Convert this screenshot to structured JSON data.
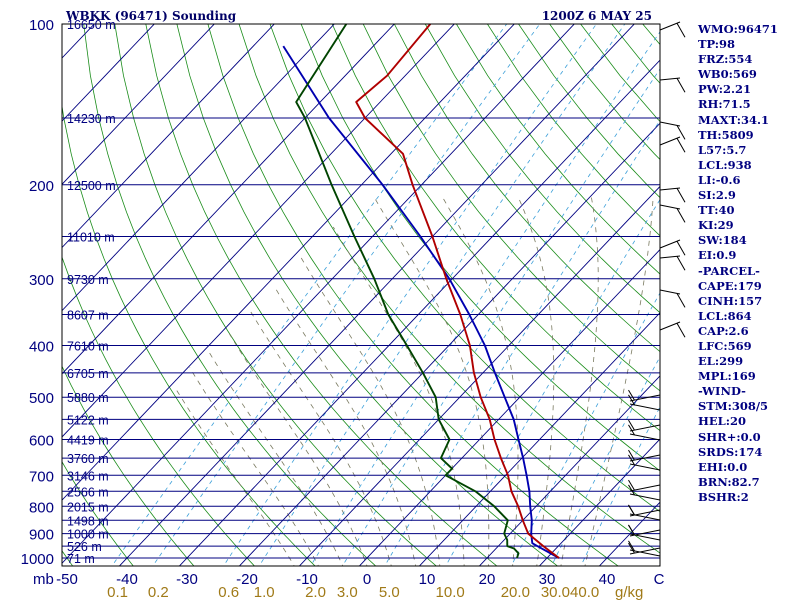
{
  "header": {
    "station": "WBKK (96471) Sounding",
    "time": "1200Z  6 MAY 25"
  },
  "chart_data": {
    "type": "line",
    "subtype": "skew-t log-p sounding",
    "pressure_levels": [
      100,
      200,
      300,
      400,
      500,
      600,
      700,
      800,
      900,
      1000
    ],
    "pressure_unit_label": "mb",
    "height_labels": [
      {
        "p": 100,
        "text": "16650 m"
      },
      {
        "p": 150,
        "text": "14230 m"
      },
      {
        "p": 200,
        "text": "12500 m"
      },
      {
        "p": 250,
        "text": "11010 m"
      },
      {
        "p": 300,
        "text": "9730 m"
      },
      {
        "p": 350,
        "text": "8607 m"
      },
      {
        "p": 400,
        "text": "7610 m"
      },
      {
        "p": 450,
        "text": "6705 m"
      },
      {
        "p": 500,
        "text": "5880 m"
      },
      {
        "p": 550,
        "text": "5122 m"
      },
      {
        "p": 600,
        "text": "4419 m"
      },
      {
        "p": 650,
        "text": "3760 m"
      },
      {
        "p": 700,
        "text": "3146 m"
      },
      {
        "p": 750,
        "text": "2566 m"
      },
      {
        "p": 800,
        "text": "2015 m"
      },
      {
        "p": 850,
        "text": "1498 m"
      },
      {
        "p": 900,
        "text": "1000 m"
      },
      {
        "p": 950,
        "text": "526 m"
      },
      {
        "p": 1000,
        "text": "71 m"
      }
    ],
    "temp_ticks": [
      "-50",
      "-40",
      "-30",
      "-20",
      "-10",
      "0",
      "10",
      "20",
      "30",
      "40"
    ],
    "mixing_ratio_label": "g/kg",
    "mixing_ratio_ticks": [
      "0.1",
      "0.2",
      "0.6",
      "1.0",
      "2.0",
      "3.0",
      "5.0",
      "10.0",
      "20.0",
      "30.0",
      "40.0"
    ],
    "temperature": [
      {
        "p": 1000,
        "t": 32.0
      },
      {
        "p": 950,
        "t": 27.5
      },
      {
        "p": 900,
        "t": 23.0
      },
      {
        "p": 850,
        "t": 20.0
      },
      {
        "p": 800,
        "t": 17.0
      },
      {
        "p": 750,
        "t": 13.5
      },
      {
        "p": 700,
        "t": 10.4
      },
      {
        "p": 650,
        "t": 6.5
      },
      {
        "p": 600,
        "t": 2.5
      },
      {
        "p": 550,
        "t": -1.5
      },
      {
        "p": 500,
        "t": -6.5
      },
      {
        "p": 450,
        "t": -11.5
      },
      {
        "p": 400,
        "t": -16.5
      },
      {
        "p": 350,
        "t": -23.0
      },
      {
        "p": 300,
        "t": -31.0
      },
      {
        "p": 250,
        "t": -40.0
      },
      {
        "p": 200,
        "t": -51.5
      },
      {
        "p": 175,
        "t": -58.0
      },
      {
        "p": 150,
        "t": -70.0
      },
      {
        "p": 140,
        "t": -74.0
      },
      {
        "p": 125,
        "t": -73.0
      },
      {
        "p": 100,
        "t": -74.0
      }
    ],
    "dewpoint": [
      {
        "p": 1000,
        "t": 25.0
      },
      {
        "p": 980,
        "t": 24.5
      },
      {
        "p": 960,
        "t": 23.0
      },
      {
        "p": 950,
        "t": 21.5
      },
      {
        "p": 925,
        "t": 20.5
      },
      {
        "p": 900,
        "t": 19.0
      },
      {
        "p": 850,
        "t": 17.5
      },
      {
        "p": 800,
        "t": 13.0
      },
      {
        "p": 750,
        "t": 7.5
      },
      {
        "p": 700,
        "t": 0.0
      },
      {
        "p": 680,
        "t": 0.0
      },
      {
        "p": 650,
        "t": -3.5
      },
      {
        "p": 600,
        "t": -5.0
      },
      {
        "p": 550,
        "t": -10.0
      },
      {
        "p": 500,
        "t": -14.0
      },
      {
        "p": 450,
        "t": -20.0
      },
      {
        "p": 400,
        "t": -27.0
      },
      {
        "p": 350,
        "t": -35.0
      },
      {
        "p": 300,
        "t": -43.0
      },
      {
        "p": 250,
        "t": -53.0
      },
      {
        "p": 200,
        "t": -65.0
      },
      {
        "p": 150,
        "t": -80.0
      },
      {
        "p": 140,
        "t": -84.0
      },
      {
        "p": 100,
        "t": -88.0
      }
    ],
    "parcel": [
      {
        "p": 1000,
        "t": 32.0
      },
      {
        "p": 950,
        "t": 26.5
      },
      {
        "p": 938,
        "t": 25.2
      },
      {
        "p": 900,
        "t": 23.5
      },
      {
        "p": 850,
        "t": 21.5
      },
      {
        "p": 800,
        "t": 19.0
      },
      {
        "p": 750,
        "t": 16.5
      },
      {
        "p": 700,
        "t": 13.5
      },
      {
        "p": 650,
        "t": 10.2
      },
      {
        "p": 600,
        "t": 6.5
      },
      {
        "p": 550,
        "t": 2.5
      },
      {
        "p": 500,
        "t": -2.5
      },
      {
        "p": 450,
        "t": -8.0
      },
      {
        "p": 400,
        "t": -14.0
      },
      {
        "p": 350,
        "t": -21.5
      },
      {
        "p": 300,
        "t": -30.5
      },
      {
        "p": 250,
        "t": -42.0
      },
      {
        "p": 200,
        "t": -56.5
      },
      {
        "p": 150,
        "t": -76.0
      },
      {
        "p": 110,
        "t": -95.0
      }
    ],
    "indices": [
      "WMO:96471",
      "TP:98",
      "FRZ:554",
      "WB0:569",
      "PW:2.21",
      "RH:71.5",
      "MAXT:34.1",
      "TH:5809",
      "L57:5.7",
      "LCL:938",
      "LI:-0.6",
      "SI:2.9",
      "TT:40",
      "KI:29",
      "SW:184",
      "EI:0.9",
      "-PARCEL-",
      "CAPE:179",
      "CINH:157",
      "LCL:864",
      "CAP:2.6",
      "LFC:569",
      "EL:299",
      "MPL:169",
      "-WIND-",
      "STM:308/5",
      "HEL:20",
      "SHR+:0.0",
      "SRDS:174",
      "EHI:0.0",
      "BRN:82.7",
      "BSHR:2"
    ]
  },
  "colors": {
    "frame": "#000000",
    "isobar": "#000080",
    "isotherm": "#000080",
    "dry_adiabat": "#1a8c1a",
    "moist_adiabat": "#7a7a60",
    "mixing_ratio": "#3b9fd9",
    "temperature": "#b00000",
    "dewpoint": "#004400",
    "parcel": "#0000b0",
    "labels": "#000080",
    "mixing_labels": "#a07a18"
  }
}
